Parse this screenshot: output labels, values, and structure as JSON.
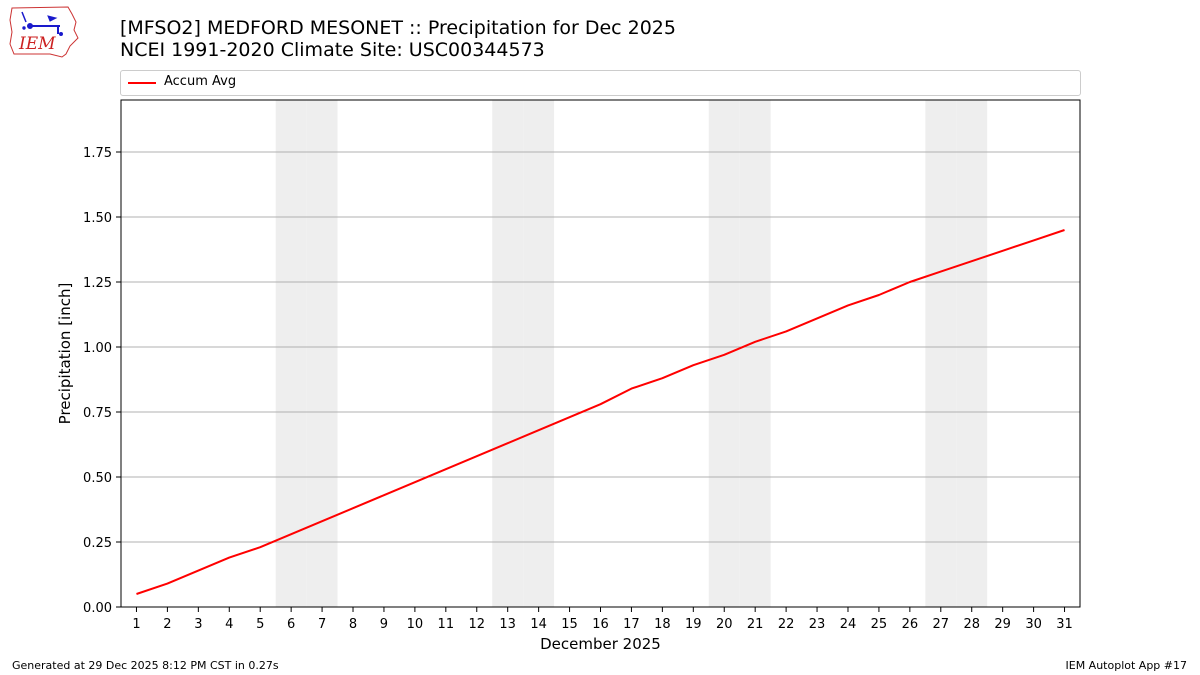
{
  "header": {
    "title_line1": "[MFSO2] MEDFORD MESONET :: Precipitation for Dec 2025",
    "title_line2": "NCEI 1991-2020 Climate Site: USC00344573",
    "logo_text": "IEM",
    "logo_icon": "iem-iowa-logo-icon"
  },
  "footer": {
    "left": "Generated at 29 Dec 2025 8:12 PM CST in 0.27s",
    "right": "IEM Autoplot App #17"
  },
  "colors": {
    "line": "#ff0000",
    "weekend_shade": "#eeeeee",
    "grid": "#b0b0b0"
  },
  "chart_data": {
    "type": "line",
    "title": "[MFSO2] MEDFORD MESONET :: Precipitation for Dec 2025",
    "subtitle": "NCEI 1991-2020 Climate Site: USC00344573",
    "xlabel": "December 2025",
    "ylabel": "Precipitation [inch]",
    "x": [
      1,
      2,
      3,
      4,
      5,
      6,
      7,
      8,
      9,
      10,
      11,
      12,
      13,
      14,
      15,
      16,
      17,
      18,
      19,
      20,
      21,
      22,
      23,
      24,
      25,
      26,
      27,
      28,
      29,
      30,
      31
    ],
    "series": [
      {
        "name": "Accum Avg",
        "color": "#ff0000",
        "values": [
          0.05,
          0.09,
          0.14,
          0.19,
          0.23,
          0.28,
          0.33,
          0.38,
          0.43,
          0.48,
          0.53,
          0.58,
          0.63,
          0.68,
          0.73,
          0.78,
          0.84,
          0.88,
          0.93,
          0.97,
          1.02,
          1.06,
          1.11,
          1.16,
          1.2,
          1.25,
          1.29,
          1.33,
          1.37,
          1.41,
          1.45
        ]
      }
    ],
    "shaded_days": [
      6,
      7,
      13,
      14,
      20,
      21,
      27,
      28
    ],
    "xlim": [
      0.5,
      31.5
    ],
    "ylim": [
      0,
      1.95
    ],
    "yticks": [
      0.0,
      0.25,
      0.5,
      0.75,
      1.0,
      1.25,
      1.5,
      1.75
    ],
    "ytick_labels": [
      "0.00",
      "0.25",
      "0.50",
      "0.75",
      "1.00",
      "1.25",
      "1.50",
      "1.75"
    ],
    "xtick_labels": [
      "1",
      "2",
      "3",
      "4",
      "5",
      "6",
      "7",
      "8",
      "9",
      "10",
      "11",
      "12",
      "13",
      "14",
      "15",
      "16",
      "17",
      "18",
      "19",
      "20",
      "21",
      "22",
      "23",
      "24",
      "25",
      "26",
      "27",
      "28",
      "29",
      "30",
      "31"
    ],
    "grid": "horizontal",
    "legend": "top"
  }
}
